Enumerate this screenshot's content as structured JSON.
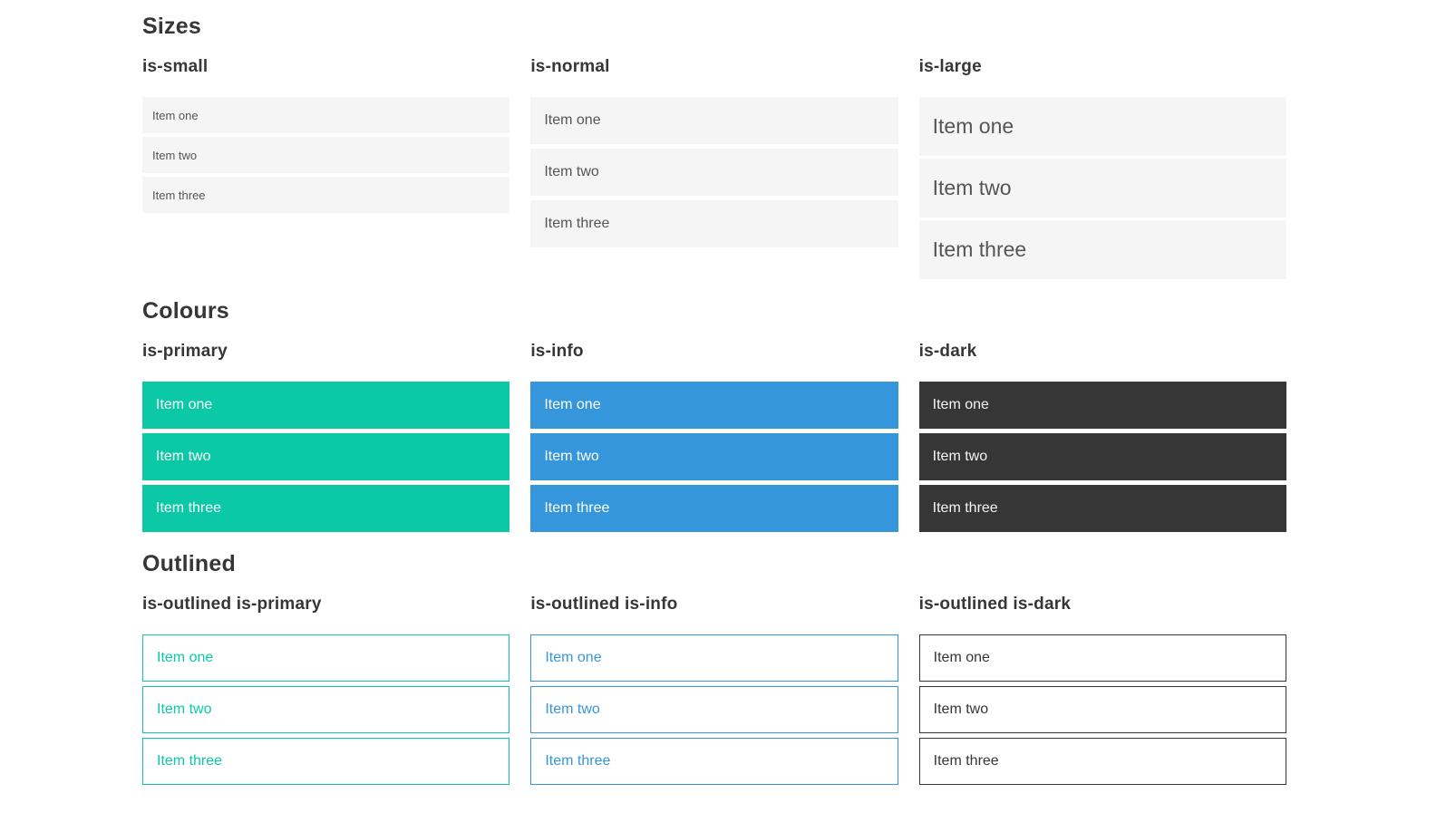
{
  "theme": {
    "primary": "#0bc8a6",
    "info": "#3596db",
    "dark": "#363636",
    "item_background": "#f5f5f5"
  },
  "sections": [
    {
      "title": "Sizes",
      "groups": [
        {
          "label": "is-small",
          "variant": "small",
          "items": [
            "Item one",
            "Item two",
            "Item three"
          ]
        },
        {
          "label": "is-normal",
          "variant": "normal",
          "items": [
            "Item one",
            "Item two",
            "Item three"
          ]
        },
        {
          "label": "is-large",
          "variant": "large",
          "items": [
            "Item one",
            "Item two",
            "Item three"
          ]
        }
      ]
    },
    {
      "title": "Colours",
      "groups": [
        {
          "label": "is-primary",
          "variant": "primary",
          "items": [
            "Item one",
            "Item two",
            "Item three"
          ]
        },
        {
          "label": "is-info",
          "variant": "info",
          "items": [
            "Item one",
            "Item two",
            "Item three"
          ]
        },
        {
          "label": "is-dark",
          "variant": "dark",
          "items": [
            "Item one",
            "Item two",
            "Item three"
          ]
        }
      ]
    },
    {
      "title": "Outlined",
      "groups": [
        {
          "label": "is-outlined is-primary",
          "variant": "outlined-primary",
          "items": [
            "Item one",
            "Item two",
            "Item three"
          ]
        },
        {
          "label": "is-outlined is-info",
          "variant": "outlined-info",
          "items": [
            "Item one",
            "Item two",
            "Item three"
          ]
        },
        {
          "label": "is-outlined is-dark",
          "variant": "outlined-dark",
          "items": [
            "Item one",
            "Item two",
            "Item three"
          ]
        }
      ]
    }
  ]
}
